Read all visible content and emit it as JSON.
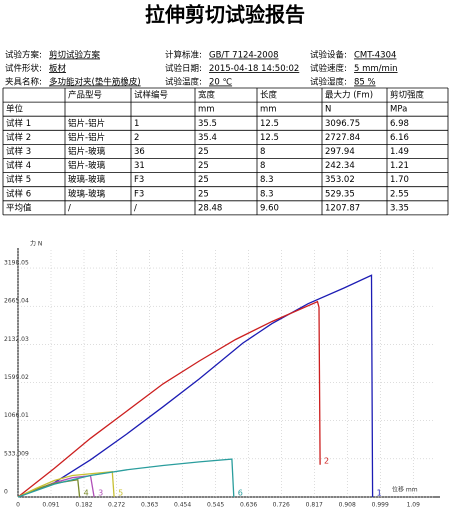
{
  "header": {
    "title": "拉伸剪切试验报告"
  },
  "info": {
    "rows": [
      [
        {
          "label": "试验方案:",
          "value": "剪切试验方案"
        },
        {
          "label": "计算标准:",
          "value": "GB/T 7124-2008"
        },
        {
          "label": "试验设备:",
          "value": "CMT-4304"
        }
      ],
      [
        {
          "label": "试件形状:",
          "value": "板材"
        },
        {
          "label": "试验日期:",
          "value": "2015-04-18 14:50:02"
        },
        {
          "label": "试验速度:",
          "value": "5 mm/min"
        }
      ],
      [
        {
          "label": "夹具名称:",
          "value": "多功能对夹(垫牛筋橡皮)"
        },
        {
          "label": "试验温度:",
          "value": "20 ℃"
        },
        {
          "label": "试验湿度:",
          "value": "85 %"
        }
      ]
    ]
  },
  "table": {
    "header": [
      "产品型号",
      "试样编号",
      "宽度",
      "长度",
      "最大力 (Fm)",
      "剪切强度"
    ],
    "units": {
      "label": "单位",
      "values": [
        "mm",
        "mm",
        "N",
        "MPa"
      ]
    },
    "rows": [
      [
        "试样 1",
        "铝片-铝片",
        "1",
        "35.5",
        "12.5",
        "3096.75",
        "6.98"
      ],
      [
        "试样 2",
        "铝片-铝片",
        "2",
        "35.4",
        "12.5",
        "2727.84",
        "6.16"
      ],
      [
        "试样 3",
        "铝片-玻璃",
        "36",
        "25",
        "8",
        "297.94",
        "1.49"
      ],
      [
        "试样 4",
        "铝片-玻璃",
        "31",
        "25",
        "8",
        "242.34",
        "1.21"
      ],
      [
        "试样 5",
        "玻璃-玻璃",
        "F3",
        "25",
        "8.3",
        "353.02",
        "1.70"
      ],
      [
        "试样 6",
        "玻璃-玻璃",
        "F3",
        "25",
        "8.3",
        "529.35",
        "2.55"
      ],
      [
        "平均值",
        "/",
        "/",
        "28.48",
        "9.60",
        "1207.87",
        "3.35"
      ]
    ]
  },
  "chart": {
    "type": "line",
    "y_label": "力 N",
    "x_label": "位移 mm",
    "xlim": [
      0,
      1.15
    ],
    "ylim": [
      0,
      3450
    ],
    "xticks": [
      0,
      0.091,
      0.182,
      0.272,
      0.363,
      0.454,
      0.545,
      0.636,
      0.726,
      0.817,
      0.908,
      0.999,
      1.09
    ],
    "yticks": [
      0,
      533.009,
      1066.01,
      1599.02,
      2132.03,
      2665.04,
      3198.05
    ],
    "grid": true,
    "series": [
      {
        "name": "1",
        "color": "#1c1cb4",
        "x": [
          0,
          0.1,
          0.2,
          0.3,
          0.4,
          0.5,
          0.62,
          0.7,
          0.8,
          0.9,
          0.975,
          0.978
        ],
        "values": [
          0,
          200,
          520,
          880,
          1260,
          1650,
          2150,
          2420,
          2700,
          2920,
          3097,
          0
        ]
      },
      {
        "name": "2",
        "color": "#cc1f1f",
        "x": [
          0,
          0.1,
          0.2,
          0.3,
          0.4,
          0.5,
          0.6,
          0.7,
          0.826,
          0.83,
          0.833
        ],
        "values": [
          0,
          400,
          820,
          1200,
          1580,
          1900,
          2200,
          2450,
          2728,
          2650,
          450
        ]
      },
      {
        "name": "3",
        "color": "#b050b8",
        "x": [
          0,
          0.05,
          0.1,
          0.15,
          0.2,
          0.21
        ],
        "values": [
          0,
          100,
          200,
          270,
          298,
          0
        ]
      },
      {
        "name": "4",
        "color": "#7a8a2a",
        "x": [
          0,
          0.05,
          0.1,
          0.165,
          0.17
        ],
        "values": [
          0,
          110,
          190,
          242,
          0
        ]
      },
      {
        "name": "5",
        "color": "#c8c032",
        "x": [
          0,
          0.05,
          0.1,
          0.15,
          0.26,
          0.265
        ],
        "values": [
          0,
          120,
          230,
          300,
          353,
          0
        ]
      },
      {
        "name": "6",
        "color": "#2a9d9d",
        "x": [
          0,
          0.1,
          0.2,
          0.3,
          0.4,
          0.5,
          0.59,
          0.595
        ],
        "values": [
          0,
          180,
          300,
          380,
          440,
          490,
          529,
          0
        ]
      }
    ]
  }
}
